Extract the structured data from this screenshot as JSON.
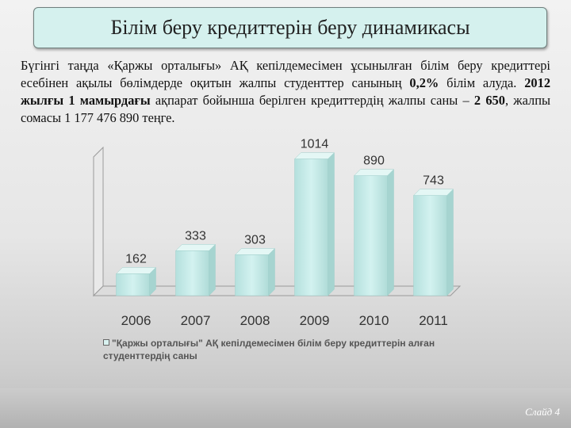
{
  "slide": {
    "title": "Білім беру кредиттерін беру динамикасы",
    "text_parts": [
      "Бүгінгі таңда «Қаржы орталығы» АҚ кепілдемесімен ұсынылған білім беру кредиттері есебінен ақылы бөлімдерде оқитын жалпы студенттер санының ",
      "0,2%",
      " білім алуда. ",
      "2012 жылғы 1 мамырдағы",
      " ақпарат бойынша берілген кредиттердің жалпы саны – ",
      "2 650",
      ", жалпы сомасы 1 177 476 890 теңге."
    ],
    "slide_number": "Слайд 4"
  },
  "chart_data": {
    "type": "bar",
    "categories": [
      "2006",
      "2007",
      "2008",
      "2009",
      "2010",
      "2011"
    ],
    "series": [
      {
        "name": "\"Қаржы орталығы\" АҚ кепілдемесімен білім беру кредиттерін алған студенттердің саны",
        "values": [
          162,
          333,
          303,
          1014,
          890,
          743
        ]
      }
    ],
    "data_labels": [
      "162",
      "333",
      "303",
      "1014",
      "890",
      "743"
    ],
    "title": "",
    "xlabel": "",
    "ylabel": "",
    "ylim": [
      0,
      1100
    ],
    "grid": false,
    "legend_position": "bottom",
    "colors": {
      "bar": "#c6ecea",
      "bar_edge": "#9fcfcb",
      "label": "#333333",
      "axis": "#9a9a9a"
    }
  }
}
